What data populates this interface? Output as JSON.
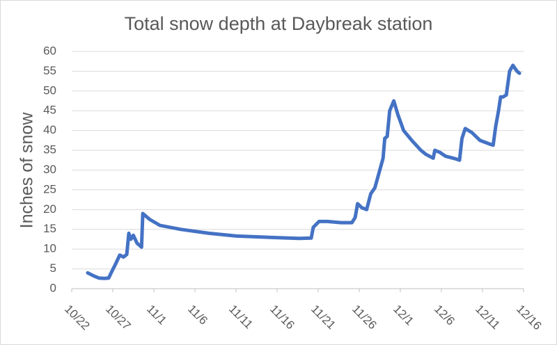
{
  "chart_data": {
    "type": "line",
    "title": "Total snow depth at Daybreak station",
    "y_label": "Inches of snow",
    "xlim": [
      0,
      55
    ],
    "xticks": [
      {
        "value": 0,
        "label": "10/22"
      },
      {
        "value": 5,
        "label": "10/27"
      },
      {
        "value": 10,
        "label": "11/1"
      },
      {
        "value": 15,
        "label": "11/6"
      },
      {
        "value": 20,
        "label": "11/11"
      },
      {
        "value": 25,
        "label": "11/16"
      },
      {
        "value": 30,
        "label": "11/21"
      },
      {
        "value": 35,
        "label": "11/26"
      },
      {
        "value": 40,
        "label": "12/1"
      },
      {
        "value": 45,
        "label": "12/6"
      },
      {
        "value": 50,
        "label": "12/11"
      },
      {
        "value": 55,
        "label": "12/16"
      }
    ],
    "ylim": [
      0,
      60
    ],
    "yticks": [
      0,
      5,
      10,
      15,
      20,
      25,
      30,
      35,
      40,
      45,
      50,
      55,
      60
    ],
    "grid": true,
    "series": [
      {
        "color": "#4472c4",
        "x": [
          1.95,
          2.7,
          3.3,
          4,
          4.5,
          4.8,
          5.4,
          5.85,
          6.3,
          6.5,
          6.7,
          6.95,
          7.2,
          7.5,
          7.95,
          8.5,
          8.65,
          9.5,
          10.75,
          13.3,
          16.7,
          20.1,
          25.2,
          27.7,
          29.15,
          29.4,
          30.1,
          31.1,
          32.8,
          34.1,
          34.5,
          34.8,
          35.3,
          35.9,
          36.4,
          36.9,
          37.5,
          37.9,
          38.1,
          38.4,
          38.7,
          39.2,
          39.7,
          40.4,
          41.4,
          42.5,
          43.1,
          44,
          44.2,
          44.8,
          45.5,
          46.8,
          47.2,
          47.5,
          47.9,
          48.7,
          49.7,
          51,
          51.3,
          51.6,
          51.95,
          52.2,
          52.5,
          52.9,
          53.3,
          53.7,
          54.2,
          54.5
        ],
        "values": [
          4,
          3.2,
          2.7,
          2.6,
          2.7,
          4,
          6.5,
          8.5,
          8,
          8.3,
          8.7,
          14,
          12.5,
          13.5,
          11.5,
          10.5,
          19,
          17.5,
          16,
          15,
          14,
          13.3,
          12.9,
          12.7,
          12.8,
          15.5,
          17,
          17,
          16.7,
          16.7,
          18,
          21.5,
          20.5,
          20,
          24,
          25.5,
          30,
          33,
          38,
          38.5,
          45,
          47.5,
          44,
          40,
          37.5,
          35,
          34,
          33,
          35,
          34.5,
          33.5,
          32.8,
          32.5,
          38,
          40.5,
          39.5,
          37.5,
          36.5,
          36.3,
          41,
          45,
          48.5,
          48.5,
          49,
          55,
          56.5,
          55,
          54.5
        ]
      }
    ]
  }
}
